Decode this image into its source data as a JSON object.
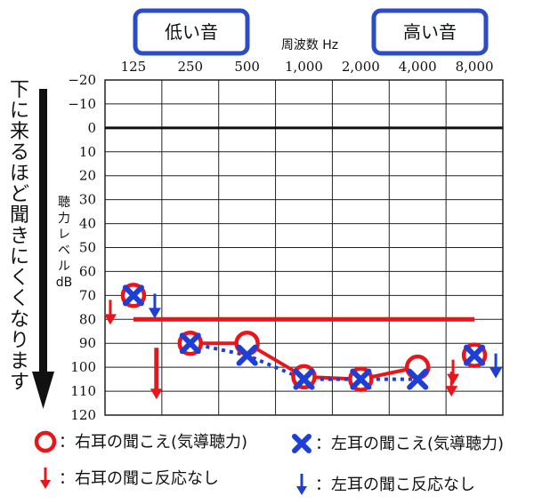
{
  "pills": {
    "low": "低い音",
    "high": "高い音"
  },
  "xaxis_title": "周波数 Hz",
  "ylabel_lines": [
    "聴",
    "力",
    "レ",
    "ベ",
    "ル",
    "dB"
  ],
  "side_note": "下に来るほど聞きにくくなります",
  "legend": [
    {
      "symbol": "circle",
      "text": "：右耳の聞こえ(気導聴力)"
    },
    {
      "symbol": "cross",
      "text": "：左耳の聞こえ(気導聴力)"
    },
    {
      "symbol": "red-arrow",
      "text": "：右耳の聞こ反応なし"
    },
    {
      "symbol": "blue-arrow",
      "text": "：左耳の聞こ反応なし"
    }
  ],
  "colors": {
    "right_ear": "#e8161a",
    "left_ear": "#1e3fd6",
    "pill_border": "#2b4bc8",
    "grid": "#222222"
  },
  "chart_data": {
    "type": "line",
    "title": "",
    "xlabel": "周波数 Hz",
    "ylabel": "聴力レベル dB",
    "categories": [
      "125",
      "250",
      "500",
      "1,000",
      "2,000",
      "4,000",
      "8,000"
    ],
    "yticks": [
      "−20",
      "−10",
      "0",
      "10",
      "20",
      "30",
      "40",
      "50",
      "60",
      "70",
      "80",
      "90",
      "100",
      "110",
      "120"
    ],
    "ylim": [
      -20,
      120
    ],
    "y_inverted": true,
    "reference_line": {
      "y": 0,
      "style": "bold"
    },
    "series": [
      {
        "name": "右耳の聞こえ(気導聴力)",
        "marker": "circle",
        "line": "solid",
        "values": [
          70,
          90,
          90,
          104,
          105,
          100,
          95
        ],
        "no_response": [
          true,
          true,
          false,
          false,
          false,
          true,
          true
        ]
      },
      {
        "name": "左耳の聞こえ(気導聴力)",
        "marker": "cross",
        "line": "dotted",
        "values": [
          70,
          90,
          95,
          105,
          105,
          105,
          95
        ],
        "no_response": [
          true,
          false,
          false,
          false,
          false,
          false,
          true
        ]
      }
    ],
    "annotation_line": {
      "y": 80,
      "from": "125",
      "to": "8,000",
      "color": "#e8161a"
    }
  }
}
